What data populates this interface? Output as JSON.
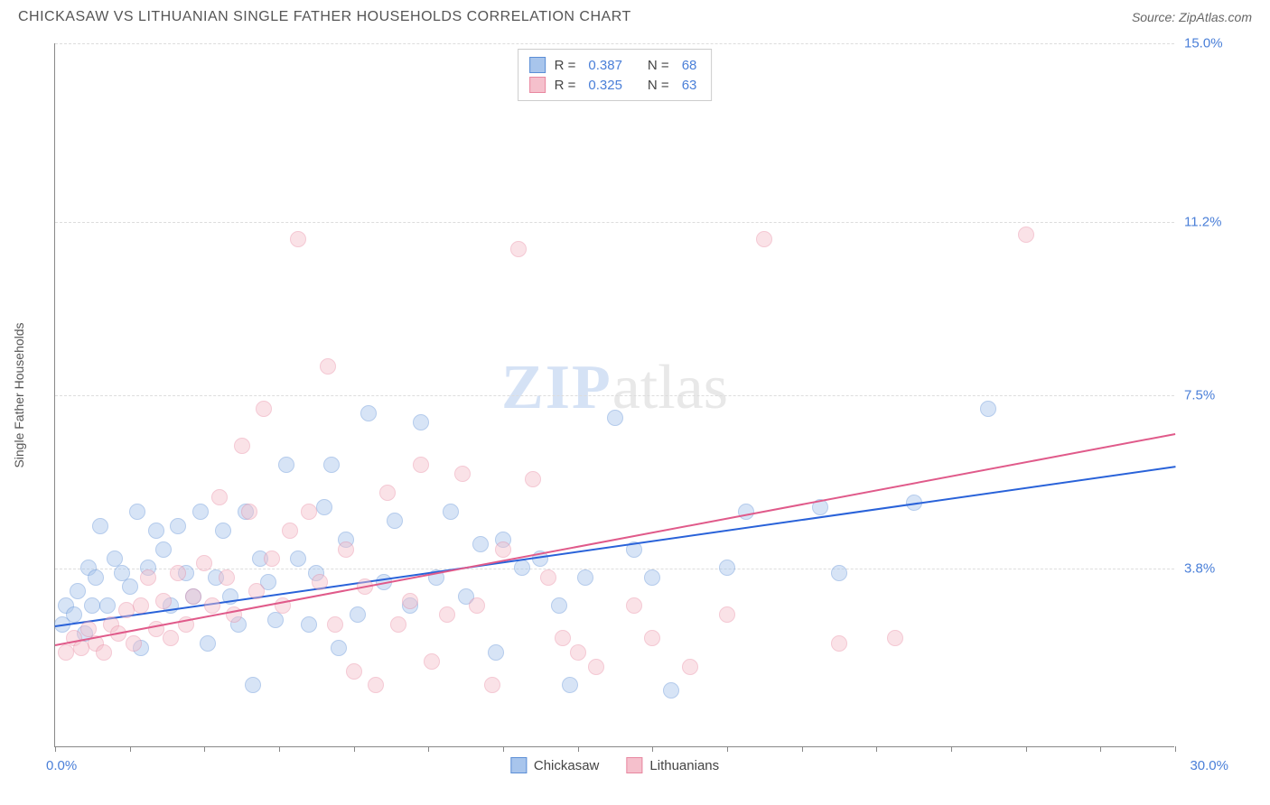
{
  "header": {
    "title": "CHICKASAW VS LITHUANIAN SINGLE FATHER HOUSEHOLDS CORRELATION CHART",
    "source_prefix": "Source: ",
    "source_name": "ZipAtlas.com"
  },
  "chart": {
    "type": "scatter",
    "y_axis_title": "Single Father Households",
    "xlim": [
      0,
      30
    ],
    "ylim": [
      0,
      15
    ],
    "x_min_label": "0.0%",
    "x_max_label": "30.0%",
    "x_ticks": [
      0,
      2,
      4,
      6,
      8,
      10,
      12,
      14,
      16,
      18,
      20,
      22,
      24,
      26,
      28,
      30
    ],
    "y_gridlines": [
      {
        "value": 3.8,
        "label": "3.8%"
      },
      {
        "value": 7.5,
        "label": "7.5%"
      },
      {
        "value": 11.2,
        "label": "11.2%"
      },
      {
        "value": 15.0,
        "label": "15.0%"
      }
    ],
    "background_color": "#ffffff",
    "grid_color": "#dddddd",
    "marker_radius": 9,
    "marker_opacity": 0.45,
    "series": [
      {
        "name": "Chickasaw",
        "color_fill": "#a8c5ec",
        "color_stroke": "#5b8ed6",
        "r_label": "R = ",
        "r_value": "0.387",
        "n_label": "N = ",
        "n_value": "68",
        "trend": {
          "x1": 0,
          "y1": 2.6,
          "x2": 30,
          "y2": 6.0,
          "color": "#2962d9",
          "width": 2
        },
        "points": [
          [
            0.2,
            2.6
          ],
          [
            0.3,
            3.0
          ],
          [
            0.5,
            2.8
          ],
          [
            0.6,
            3.3
          ],
          [
            0.8,
            2.4
          ],
          [
            0.9,
            3.8
          ],
          [
            1.0,
            3.0
          ],
          [
            1.1,
            3.6
          ],
          [
            1.2,
            4.7
          ],
          [
            1.4,
            3.0
          ],
          [
            1.6,
            4.0
          ],
          [
            1.8,
            3.7
          ],
          [
            2.0,
            3.4
          ],
          [
            2.2,
            5.0
          ],
          [
            2.3,
            2.1
          ],
          [
            2.5,
            3.8
          ],
          [
            2.7,
            4.6
          ],
          [
            2.9,
            4.2
          ],
          [
            3.1,
            3.0
          ],
          [
            3.3,
            4.7
          ],
          [
            3.5,
            3.7
          ],
          [
            3.7,
            3.2
          ],
          [
            3.9,
            5.0
          ],
          [
            4.1,
            2.2
          ],
          [
            4.3,
            3.6
          ],
          [
            4.5,
            4.6
          ],
          [
            4.7,
            3.2
          ],
          [
            4.9,
            2.6
          ],
          [
            5.1,
            5.0
          ],
          [
            5.3,
            1.3
          ],
          [
            5.5,
            4.0
          ],
          [
            5.7,
            3.5
          ],
          [
            5.9,
            2.7
          ],
          [
            6.2,
            6.0
          ],
          [
            6.5,
            4.0
          ],
          [
            6.8,
            2.6
          ],
          [
            7.0,
            3.7
          ],
          [
            7.2,
            5.1
          ],
          [
            7.4,
            6.0
          ],
          [
            7.6,
            2.1
          ],
          [
            7.8,
            4.4
          ],
          [
            8.1,
            2.8
          ],
          [
            8.4,
            7.1
          ],
          [
            8.8,
            3.5
          ],
          [
            9.1,
            4.8
          ],
          [
            9.5,
            3.0
          ],
          [
            9.8,
            6.9
          ],
          [
            10.2,
            3.6
          ],
          [
            10.6,
            5.0
          ],
          [
            11.0,
            3.2
          ],
          [
            11.4,
            4.3
          ],
          [
            11.8,
            2.0
          ],
          [
            12.0,
            4.4
          ],
          [
            12.5,
            3.8
          ],
          [
            13.0,
            4.0
          ],
          [
            13.5,
            3.0
          ],
          [
            13.8,
            1.3
          ],
          [
            14.2,
            3.6
          ],
          [
            15.0,
            7.0
          ],
          [
            15.5,
            4.2
          ],
          [
            16.0,
            3.6
          ],
          [
            16.5,
            1.2
          ],
          [
            18.0,
            3.8
          ],
          [
            18.5,
            5.0
          ],
          [
            20.5,
            5.1
          ],
          [
            21.0,
            3.7
          ],
          [
            23.0,
            5.2
          ],
          [
            25.0,
            7.2
          ]
        ]
      },
      {
        "name": "Lithuanians",
        "color_fill": "#f5c0cc",
        "color_stroke": "#e887a0",
        "r_label": "R = ",
        "r_value": "0.325",
        "n_label": "N = ",
        "n_value": "63",
        "trend": {
          "x1": 0,
          "y1": 2.2,
          "x2": 30,
          "y2": 6.7,
          "color": "#e05a8a",
          "width": 2
        },
        "points": [
          [
            0.3,
            2.0
          ],
          [
            0.5,
            2.3
          ],
          [
            0.7,
            2.1
          ],
          [
            0.9,
            2.5
          ],
          [
            1.1,
            2.2
          ],
          [
            1.3,
            2.0
          ],
          [
            1.5,
            2.6
          ],
          [
            1.7,
            2.4
          ],
          [
            1.9,
            2.9
          ],
          [
            2.1,
            2.2
          ],
          [
            2.3,
            3.0
          ],
          [
            2.5,
            3.6
          ],
          [
            2.7,
            2.5
          ],
          [
            2.9,
            3.1
          ],
          [
            3.1,
            2.3
          ],
          [
            3.3,
            3.7
          ],
          [
            3.5,
            2.6
          ],
          [
            3.7,
            3.2
          ],
          [
            4.0,
            3.9
          ],
          [
            4.2,
            3.0
          ],
          [
            4.4,
            5.3
          ],
          [
            4.6,
            3.6
          ],
          [
            4.8,
            2.8
          ],
          [
            5.0,
            6.4
          ],
          [
            5.2,
            5.0
          ],
          [
            5.4,
            3.3
          ],
          [
            5.6,
            7.2
          ],
          [
            5.8,
            4.0
          ],
          [
            6.1,
            3.0
          ],
          [
            6.3,
            4.6
          ],
          [
            6.5,
            10.8
          ],
          [
            6.8,
            5.0
          ],
          [
            7.1,
            3.5
          ],
          [
            7.3,
            8.1
          ],
          [
            7.5,
            2.6
          ],
          [
            7.8,
            4.2
          ],
          [
            8.0,
            1.6
          ],
          [
            8.3,
            3.4
          ],
          [
            8.6,
            1.3
          ],
          [
            8.9,
            5.4
          ],
          [
            9.2,
            2.6
          ],
          [
            9.5,
            3.1
          ],
          [
            9.8,
            6.0
          ],
          [
            10.1,
            1.8
          ],
          [
            10.5,
            2.8
          ],
          [
            10.9,
            5.8
          ],
          [
            11.3,
            3.0
          ],
          [
            11.7,
            1.3
          ],
          [
            12.0,
            4.2
          ],
          [
            12.4,
            10.6
          ],
          [
            12.8,
            5.7
          ],
          [
            13.2,
            3.6
          ],
          [
            13.6,
            2.3
          ],
          [
            14.0,
            2.0
          ],
          [
            14.5,
            1.7
          ],
          [
            15.5,
            3.0
          ],
          [
            16.0,
            2.3
          ],
          [
            17.0,
            1.7
          ],
          [
            18.0,
            2.8
          ],
          [
            19.0,
            10.8
          ],
          [
            21.0,
            2.2
          ],
          [
            22.5,
            2.3
          ],
          [
            26.0,
            10.9
          ]
        ]
      }
    ],
    "watermark": {
      "zip": "ZIP",
      "atlas": "atlas"
    }
  }
}
